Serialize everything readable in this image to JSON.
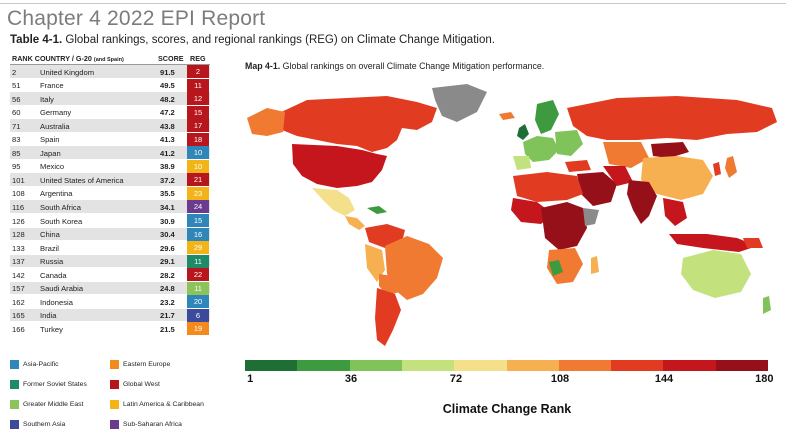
{
  "header": {
    "chapter_title": "Chapter 4  2022 EPI Report"
  },
  "table": {
    "caption_bold": "Table 4-1.",
    "caption_rest": " Global rankings, scores, and regional rankings (REG) on Climate Change Mitigation.",
    "headers": {
      "rank_country": "RANK COUNTRY / G-20",
      "rank_country_note": "(and Spain)",
      "score": "SCORE",
      "reg": "REG"
    },
    "rows": [
      {
        "rank": "2",
        "country": "United Kingdom",
        "score": "91.5",
        "reg": "2",
        "color": "#b8161d"
      },
      {
        "rank": "51",
        "country": "France",
        "score": "49.5",
        "reg": "11",
        "color": "#b8161d"
      },
      {
        "rank": "56",
        "country": "Italy",
        "score": "48.2",
        "reg": "12",
        "color": "#b8161d"
      },
      {
        "rank": "60",
        "country": "Germany",
        "score": "47.2",
        "reg": "15",
        "color": "#b8161d"
      },
      {
        "rank": "71",
        "country": "Australia",
        "score": "43.8",
        "reg": "17",
        "color": "#b8161d"
      },
      {
        "rank": "83",
        "country": "Spain",
        "score": "41.3",
        "reg": "18",
        "color": "#b8161d"
      },
      {
        "rank": "85",
        "country": "Japan",
        "score": "41.2",
        "reg": "10",
        "color": "#2f86b8"
      },
      {
        "rank": "95",
        "country": "Mexico",
        "score": "38.9",
        "reg": "10",
        "color": "#f2b417"
      },
      {
        "rank": "101",
        "country": "United States of America",
        "score": "37.2",
        "reg": "21",
        "color": "#b8161d"
      },
      {
        "rank": "108",
        "country": "Argentina",
        "score": "35.5",
        "reg": "23",
        "color": "#f2b417"
      },
      {
        "rank": "116",
        "country": "South Africa",
        "score": "34.1",
        "reg": "24",
        "color": "#6b3b8f"
      },
      {
        "rank": "126",
        "country": "South Korea",
        "score": "30.9",
        "reg": "15",
        "color": "#2f86b8"
      },
      {
        "rank": "128",
        "country": "China",
        "score": "30.4",
        "reg": "16",
        "color": "#2f86b8"
      },
      {
        "rank": "133",
        "country": "Brazil",
        "score": "29.6",
        "reg": "29",
        "color": "#f2b417"
      },
      {
        "rank": "137",
        "country": "Russia",
        "score": "29.1",
        "reg": "11",
        "color": "#1e8a6a"
      },
      {
        "rank": "142",
        "country": "Canada",
        "score": "28.2",
        "reg": "22",
        "color": "#b8161d"
      },
      {
        "rank": "157",
        "country": "Saudi Arabia",
        "score": "24.8",
        "reg": "11",
        "color": "#8cc35b"
      },
      {
        "rank": "162",
        "country": "Indonesia",
        "score": "23.2",
        "reg": "20",
        "color": "#2f86b8"
      },
      {
        "rank": "165",
        "country": "India",
        "score": "21.7",
        "reg": "6",
        "color": "#3d4a9b"
      },
      {
        "rank": "166",
        "country": "Turkey",
        "score": "21.5",
        "reg": "19",
        "color": "#f28a1e"
      }
    ]
  },
  "region_legend": [
    {
      "label": "Asia-Pacific",
      "color": "#2f86b8"
    },
    {
      "label": "Eastern Europe",
      "color": "#f28a1e"
    },
    {
      "label": "Former Soviet States",
      "color": "#1e8a6a"
    },
    {
      "label": "Global West",
      "color": "#b8161d"
    },
    {
      "label": "Greater Middle East",
      "color": "#8cc35b"
    },
    {
      "label": "Latin America & Caribbean",
      "color": "#f2b417"
    },
    {
      "label": "Southern Asia",
      "color": "#3d4a9b"
    },
    {
      "label": "Sub-Saharan Africa",
      "color": "#6b3b8f"
    }
  ],
  "map": {
    "caption_bold": "Map 4-1.",
    "caption_rest": " Global rankings on overall Climate Change Mitigation performance.",
    "ocean_color": "#ffffff",
    "no_data_color": "#8a8a8a"
  },
  "scale": {
    "title": "Climate Change Rank",
    "ticks": [
      "1",
      "36",
      "72",
      "108",
      "144",
      "180"
    ],
    "colors": [
      "#1e6e35",
      "#3e9a3e",
      "#7fc35a",
      "#c3e27e",
      "#f4e08b",
      "#f6b051",
      "#f07a32",
      "#e13b22",
      "#c4161c",
      "#951018"
    ]
  }
}
